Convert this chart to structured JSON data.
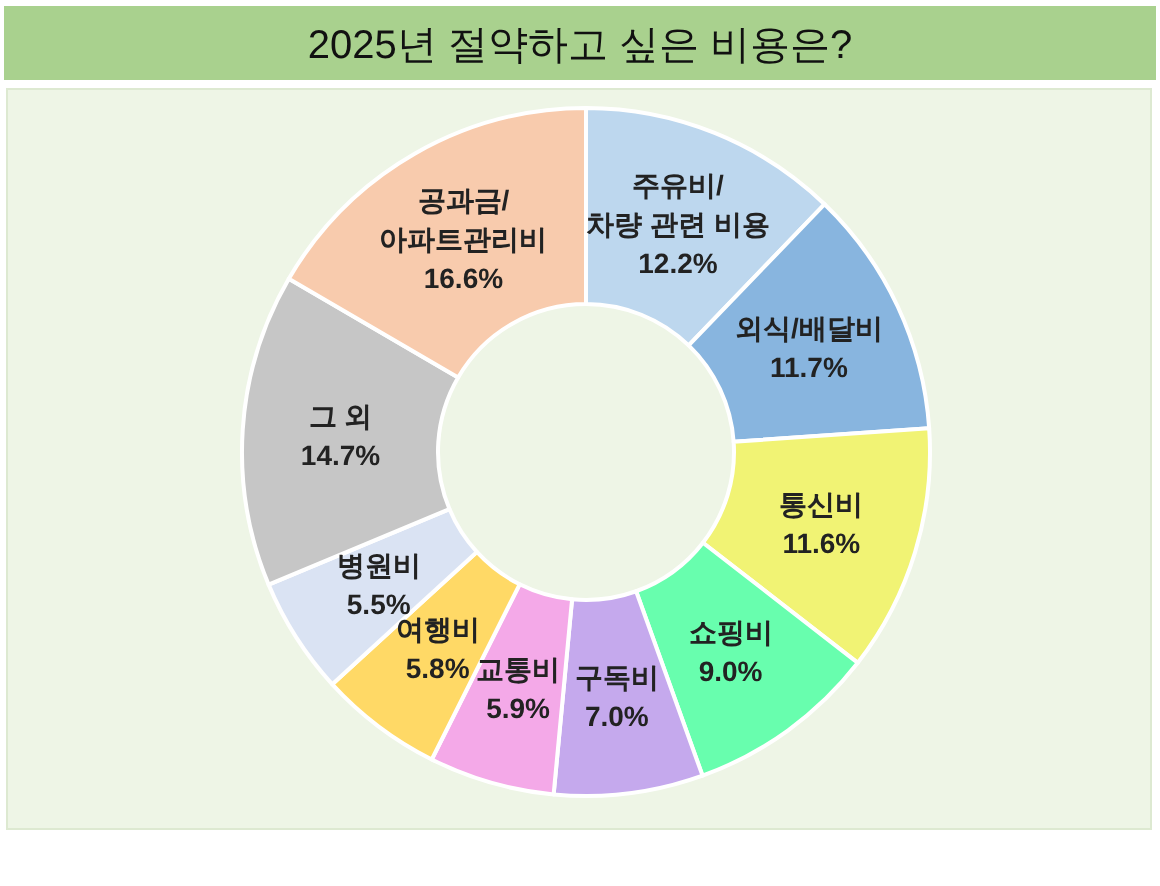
{
  "chart_data": {
    "type": "donut",
    "title": "2025년 절약하고 싶은 비용은?",
    "categories": [
      "주유비/차량 관련 비용",
      "외식/배달비",
      "통신비",
      "쇼핑비",
      "구독비",
      "교통비",
      "여행비",
      "병원비",
      "그 외",
      "공과금/아파트관리비"
    ],
    "values": [
      12.2,
      11.7,
      11.6,
      9.0,
      7.0,
      5.9,
      5.8,
      5.5,
      14.7,
      16.6
    ],
    "colors": [
      "#bdd7ee",
      "#88b5df",
      "#f1f374",
      "#68feae",
      "#c5a9ed",
      "#f4a9e8",
      "#ffd966",
      "#dae3f3",
      "#c6c6c6",
      "#f8cbad"
    ],
    "value_labels": [
      "12.2%",
      "11.7%",
      "11.6%",
      "9.0%",
      "7.0%",
      "5.9%",
      "5.8%",
      "5.5%",
      "14.7%",
      "16.6%"
    ]
  }
}
